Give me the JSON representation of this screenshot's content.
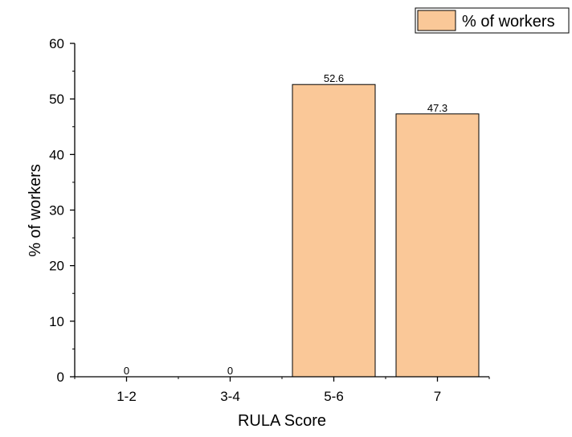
{
  "chart_data": {
    "type": "bar",
    "categories": [
      "1-2",
      "3-4",
      "5-6",
      "7"
    ],
    "values": [
      0,
      0,
      52.6,
      47.3
    ],
    "data_labels": [
      "0",
      "0",
      "52.6",
      "47.3"
    ],
    "series": [
      {
        "name": "%  of workers",
        "values": [
          0,
          0,
          52.6,
          47.3
        ]
      }
    ],
    "xlabel": "RULA Score",
    "ylabel": "%  of workers",
    "ylim": [
      0,
      60
    ],
    "yticks": [
      "0",
      "10",
      "20",
      "30",
      "40",
      "50",
      "60"
    ],
    "grid": false,
    "legend_position": "top-right",
    "bar_color": "#fac898",
    "bar_edge_color": "#000000"
  }
}
